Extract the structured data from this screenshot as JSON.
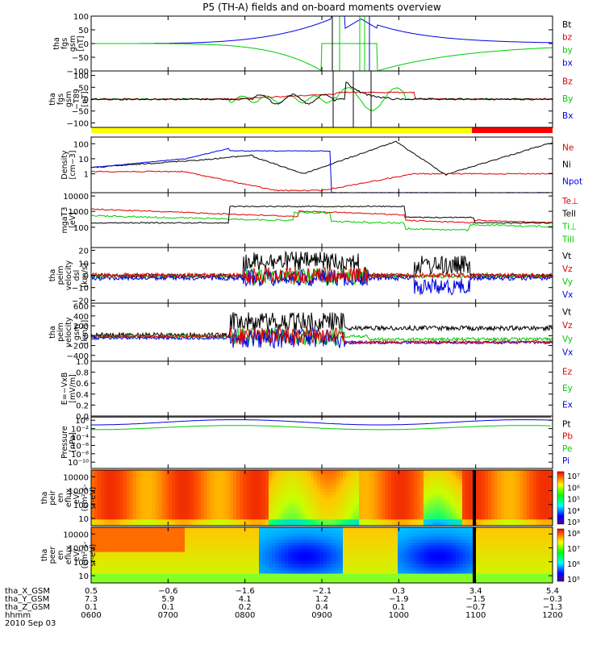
{
  "title": "P5 (TH-A) fields and on-board moments overview",
  "colors": {
    "black": "#000000",
    "red": "#e00000",
    "green": "#00cc00",
    "blue": "#0000e0",
    "yellow": "#ffff00",
    "flag_red": "#ff0000"
  },
  "chart_data": [
    {
      "type": "line",
      "ylabel": [
        "tha",
        "fgs",
        "gsm",
        "[nT]"
      ],
      "yticks": [
        "100",
        "50",
        "0",
        "−50",
        "−100"
      ],
      "ylim": [
        -100,
        100
      ],
      "legend": [
        {
          "text": "Bt",
          "color": "black"
        },
        {
          "text": "bz",
          "color": "red"
        },
        {
          "text": "by",
          "color": "green"
        },
        {
          "text": "bx",
          "color": "blue"
        }
      ]
    },
    {
      "type": "line",
      "ylabel": [
        "tha",
        "fgs",
        "gsm",
        "−T89",
        "[nT]"
      ],
      "yticks": [
        "100",
        "50",
        "0",
        "−50",
        "−100"
      ],
      "ylim": [
        -120,
        120
      ],
      "legend": [
        {
          "text": "Bz",
          "color": "red"
        },
        {
          "text": "By",
          "color": "green"
        },
        {
          "text": "Bx",
          "color": "blue"
        }
      ]
    },
    {
      "type": "line",
      "scale": "log",
      "ylabel": [
        "Density",
        "[cm−3]"
      ],
      "yticks": [
        "100",
        "10",
        "1"
      ],
      "legend": [
        {
          "text": "Ne",
          "color": "red"
        },
        {
          "text": "Ni",
          "color": "black"
        },
        {
          "text": "Npot",
          "color": "blue"
        }
      ]
    },
    {
      "type": "line",
      "scale": "log",
      "ylabel": [
        "mgaT3",
        "[eV]"
      ],
      "yticks": [
        "10000",
        "1000",
        "100"
      ],
      "legend": [
        {
          "text": "Te⊥",
          "color": "red"
        },
        {
          "text": "Tell",
          "color": "black"
        },
        {
          "text": "Ti⊥",
          "color": "green"
        },
        {
          "text": "Till",
          "color": "green"
        }
      ]
    },
    {
      "type": "line",
      "ylabel": [
        "tha",
        "peim",
        "velocity",
        "dsl",
        "[km/s]"
      ],
      "yticks": [
        "20",
        "10",
        "0",
        "−10",
        "−20"
      ],
      "ylim": [
        -20,
        20
      ],
      "legend": [
        {
          "text": "Vt",
          "color": "black"
        },
        {
          "text": "Vz",
          "color": "red"
        },
        {
          "text": "Vy",
          "color": "green"
        },
        {
          "text": "Vx",
          "color": "blue"
        }
      ]
    },
    {
      "type": "line",
      "ylabel": [
        "tha",
        "peim",
        "velocity",
        "gsm",
        "[km/s]"
      ],
      "yticks": [
        "600",
        "400",
        "200",
        "0",
        "−200",
        "−400"
      ],
      "ylim": [
        -450,
        620
      ],
      "legend": [
        {
          "text": "Vt",
          "color": "black"
        },
        {
          "text": "Vz",
          "color": "red"
        },
        {
          "text": "Vy",
          "color": "green"
        },
        {
          "text": "Vx",
          "color": "blue"
        }
      ]
    },
    {
      "type": "line",
      "ylabel": [
        "E=−VxB",
        "[mV/m]"
      ],
      "yticks": [
        "1.0",
        "0.8",
        "0.6",
        "0.4",
        "0.2",
        "0.0"
      ],
      "ylim": [
        0,
        1
      ],
      "legend": [
        {
          "text": "Ez",
          "color": "red"
        },
        {
          "text": "Ey",
          "color": "green"
        },
        {
          "text": "Ex",
          "color": "blue"
        }
      ]
    },
    {
      "type": "line",
      "scale": "log",
      "ylabel": [
        "Pressure",
        "[nPa]"
      ],
      "yticks": [
        "10⁰",
        "10⁻²",
        "10⁻⁴",
        "10⁻⁶",
        "10⁻⁸",
        "10⁻¹⁰"
      ],
      "legend": [
        {
          "text": "Pt",
          "color": "black"
        },
        {
          "text": "Pb",
          "color": "red"
        },
        {
          "text": "Pe",
          "color": "green"
        },
        {
          "text": "Pi",
          "color": "blue"
        }
      ]
    },
    {
      "type": "heatmap",
      "scale": "log",
      "ylabel": [
        "tha",
        "peir",
        "en",
        "eflux",
        "eV/",
        "(cm²-s-",
        "sr-eV)"
      ],
      "yticks": [
        "10000",
        "1000",
        "100",
        "10"
      ],
      "colorbar": [
        "10⁷",
        "10⁶",
        "10⁵",
        "10⁴",
        "10³"
      ]
    },
    {
      "type": "heatmap",
      "scale": "log",
      "ylabel": [
        "tha",
        "peer",
        "en",
        "eflux",
        "eV/",
        "(cm²-s-",
        "sr-eV)"
      ],
      "yticks": [
        "10000",
        "1000",
        "100",
        "10"
      ],
      "colorbar": [
        "10⁸",
        "10⁷",
        "10⁶",
        "10⁵"
      ]
    }
  ],
  "xaxis": {
    "rows": [
      {
        "label": "tha_X_GSM",
        "values": [
          "0.5",
          "−0.6",
          "−1.6",
          "−2.1",
          "0.3",
          "3.4",
          "5.4"
        ]
      },
      {
        "label": "tha_Y_GSM",
        "values": [
          "7.3",
          "5.9",
          "4.1",
          "1.2",
          "−1.9",
          "−1.5",
          "−0.3"
        ]
      },
      {
        "label": "tha_Z_GSM",
        "values": [
          "0.1",
          "0.1",
          "0.2",
          "0.4",
          "0.1",
          "−0.7",
          "−1.3"
        ]
      },
      {
        "label": "hhmm",
        "values": [
          "0600",
          "0700",
          "0800",
          "0900",
          "1000",
          "1100",
          "1200"
        ]
      }
    ],
    "date": "2010 Sep 03"
  }
}
